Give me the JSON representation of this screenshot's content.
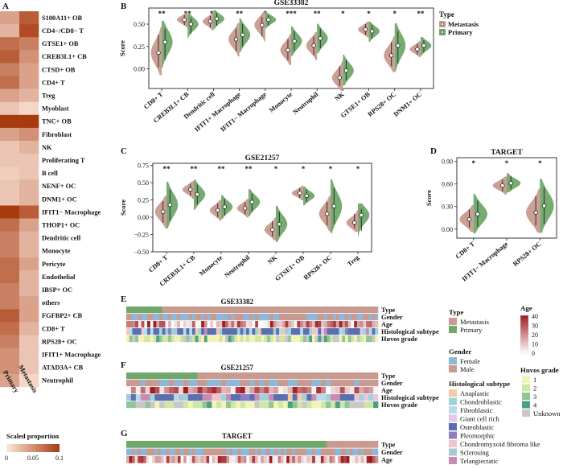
{
  "colors": {
    "metastasis": "#c99a8f",
    "primary": "#6fa86a",
    "heat_low": "#fbe8dc",
    "heat_high": "#a83a10",
    "female": "#8fb8d8",
    "male": "#c99a8f",
    "age_low": "#ffffff",
    "age_high": "#9e1b20",
    "huvos": [
      "#f3f3b4",
      "#cfe6a4",
      "#8fc59a",
      "#4e9e86",
      "#c8c8c8"
    ],
    "histo": [
      "#f3c9a8",
      "#9fd3d8",
      "#b8dbe6",
      "#e6c7e3",
      "#5a6fb0",
      "#8e7cc3",
      "#f2c4cf",
      "#a7c7d6",
      "#c98bb0"
    ]
  },
  "panel_labels": {
    "A": "A",
    "B": "B",
    "C": "C",
    "D": "D",
    "E": "E",
    "F": "F",
    "G": "G"
  },
  "chart_data": [
    {
      "panel": "A",
      "type": "heatmap",
      "rows": [
        "S100A11+ OB",
        "CD4−/CD8− T",
        "GTSE1+ OB",
        "CREB3L1+ CB",
        "CTSD+ OB",
        "CD4+ T",
        "Treg",
        "Myoblast",
        "TNC+ OB",
        "Fibroblast",
        "NK",
        "Proliferating T",
        "B cell",
        "NENF+ OC",
        "DNM1+ OC",
        "IFIT1− Macrophage",
        "THOP1+ OC",
        "Dendritic cell",
        "Monocyte",
        "Pericyte",
        "Endothelial",
        "IBSP+ OC",
        "others",
        "FGFBP2+ CB",
        "CD8+ T",
        "RPS28+ OC",
        "IFIT1+ Macrophage",
        "ATAD3A+ CB",
        "Neutrophil"
      ],
      "columns": [
        "Primary",
        "Metastasis"
      ],
      "values": [
        [
          0.04,
          0.08
        ],
        [
          0.03,
          0.09
        ],
        [
          0.07,
          0.06
        ],
        [
          0.08,
          0.05
        ],
        [
          0.06,
          0.04
        ],
        [
          0.07,
          0.04
        ],
        [
          0.04,
          0.03
        ],
        [
          0.02,
          0.01
        ],
        [
          0.1,
          0.1
        ],
        [
          0.04,
          0.05
        ],
        [
          0.02,
          0.03
        ],
        [
          0.02,
          0.02
        ],
        [
          0.015,
          0.02
        ],
        [
          0.02,
          0.03
        ],
        [
          0.02,
          0.03
        ],
        [
          0.1,
          0.08
        ],
        [
          0.07,
          0.04
        ],
        [
          0.06,
          0.03
        ],
        [
          0.06,
          0.03
        ],
        [
          0.07,
          0.04
        ],
        [
          0.07,
          0.03
        ],
        [
          0.06,
          0.03
        ],
        [
          0.06,
          0.04
        ],
        [
          0.08,
          0.04
        ],
        [
          0.07,
          0.03
        ],
        [
          0.06,
          0.02
        ],
        [
          0.05,
          0.02
        ],
        [
          0.05,
          0.02
        ],
        [
          0.04,
          0.01
        ]
      ],
      "legend_title": "Scaled proportion",
      "legend_ticks": [
        "0",
        "0.05",
        "0.1"
      ],
      "range": [
        0,
        0.1
      ]
    },
    {
      "panel": "B",
      "type": "violin",
      "title": "GSE33382",
      "ylabel": "Score",
      "ylim": [
        -0.22,
        0.68
      ],
      "yticks": [
        0.0,
        0.25,
        0.5
      ],
      "ytick_labels": [
        "0.00",
        "0.25",
        "0.50"
      ],
      "categories": [
        "CD8+ T",
        "CREB3L1+ CB",
        "Dendritic cell",
        "IFIT1+ Macrophage",
        "IFIT1− Macrophage",
        "Monocyte",
        "Neutrophil",
        "NK",
        "GTSE1+ OB",
        "RPS28+ OC",
        "DNM1+ OC"
      ],
      "significance": [
        "**",
        "**",
        "**",
        "**",
        "*",
        "***",
        "**",
        "*",
        "*",
        "*",
        "**"
      ],
      "series": [
        {
          "name": "Metastasis",
          "median": [
            0.18,
            0.55,
            0.53,
            0.33,
            0.49,
            0.21,
            0.26,
            -0.1,
            0.44,
            0.15,
            0.22
          ],
          "min": [
            0.02,
            0.49,
            0.46,
            0.2,
            0.36,
            0.1,
            0.15,
            -0.19,
            0.38,
            0.03,
            0.16
          ],
          "max": [
            0.38,
            0.6,
            0.59,
            0.45,
            0.58,
            0.33,
            0.36,
            0.03,
            0.5,
            0.3,
            0.28
          ]
        },
        {
          "name": "Primary",
          "median": [
            0.3,
            0.5,
            0.56,
            0.38,
            0.55,
            0.31,
            0.34,
            -0.02,
            0.42,
            0.26,
            0.26
          ],
          "min": [
            0.1,
            0.39,
            0.48,
            0.25,
            0.48,
            0.2,
            0.23,
            -0.13,
            0.34,
            0.06,
            0.18
          ],
          "max": [
            0.45,
            0.57,
            0.62,
            0.5,
            0.6,
            0.42,
            0.45,
            0.1,
            0.49,
            0.42,
            0.32
          ]
        }
      ],
      "legend": {
        "title": "Type",
        "entries": [
          "Metastasis",
          "Primary"
        ]
      }
    },
    {
      "panel": "C",
      "type": "violin",
      "title": "GSE21257",
      "ylabel": "Score",
      "ylim": [
        -0.5,
        0.78
      ],
      "yticks": [
        -0.5,
        -0.25,
        0.0,
        0.25,
        0.5,
        0.75
      ],
      "ytick_labels": [
        "−0.50",
        "−0.25",
        "0.00",
        "0.25",
        "0.50",
        "0.75"
      ],
      "categories": [
        "CD8+ T",
        "CREB3L1+ CB",
        "Monocyte",
        "Neutrophil",
        "NK",
        "GTSE1+ OB",
        "RPS28+ OC",
        "Treg"
      ],
      "significance": [
        "**",
        "**",
        "**",
        "**",
        "*",
        "*",
        "*",
        "*"
      ],
      "series": [
        {
          "name": "Metastasis",
          "median": [
            0.08,
            0.4,
            0.1,
            0.13,
            -0.18,
            0.35,
            0.05,
            -0.08
          ],
          "min": [
            -0.08,
            0.31,
            0.0,
            0.04,
            -0.28,
            0.28,
            -0.12,
            -0.16
          ],
          "max": [
            0.23,
            0.48,
            0.2,
            0.22,
            -0.06,
            0.42,
            0.22,
            0.05
          ]
        },
        {
          "name": "Primary",
          "median": [
            0.18,
            0.33,
            0.15,
            0.22,
            -0.1,
            0.31,
            0.16,
            0.03
          ],
          "min": [
            -0.05,
            0.18,
            0.03,
            0.08,
            -0.27,
            0.22,
            -0.1,
            -0.2
          ],
          "max": [
            0.4,
            0.47,
            0.26,
            0.34,
            0.08,
            0.4,
            0.42,
            0.12
          ]
        }
      ]
    },
    {
      "panel": "D",
      "type": "violin",
      "title": "TARGET",
      "ylabel": "Score",
      "ylim": [
        -0.12,
        0.95
      ],
      "yticks": [
        0.0,
        0.3,
        0.6,
        0.9
      ],
      "ytick_labels": [
        "0.00",
        "0.30",
        "0.60",
        "0.90"
      ],
      "categories": [
        "CD8+ T",
        "IFIT1− Macrophage",
        "RPS28+ OC"
      ],
      "significance": [
        "*",
        "*",
        "*"
      ],
      "series": [
        {
          "name": "Metastasis",
          "median": [
            0.13,
            0.58,
            0.22
          ],
          "min": [
            0.02,
            0.5,
            0.05
          ],
          "max": [
            0.26,
            0.66,
            0.44
          ]
        },
        {
          "name": "Primary",
          "median": [
            0.2,
            0.61,
            0.31
          ],
          "min": [
            0.03,
            0.53,
            0.07
          ],
          "max": [
            0.38,
            0.7,
            0.55
          ]
        }
      ]
    },
    {
      "panel": "E",
      "type": "annotation_heatmap",
      "title": "GSE33382",
      "tracks": [
        "Type",
        "Gender",
        "Age",
        "Histological subtype",
        "Huvos grade"
      ],
      "n_samples": 84,
      "primary_fraction": 0.14
    },
    {
      "panel": "F",
      "type": "annotation_heatmap",
      "title": "GSE21257",
      "tracks": [
        "Type",
        "Gender",
        "Age",
        "Histological subtype",
        "Huvos grade"
      ],
      "n_samples": 53,
      "primary_fraction": 0.28
    },
    {
      "panel": "G",
      "type": "annotation_heatmap",
      "title": "TARGET",
      "tracks": [
        "Type",
        "Gender",
        "Age"
      ],
      "n_samples": 88,
      "primary_fraction": 0.79
    }
  ],
  "legends": {
    "type": {
      "title": "Type",
      "entries": [
        "Metastasis",
        "Primary"
      ]
    },
    "gender": {
      "title": "Gender",
      "entries": [
        "Female",
        "Male"
      ]
    },
    "age": {
      "title": "Age",
      "ticks": [
        "40",
        "30",
        "20",
        "10",
        "0"
      ],
      "range": [
        0,
        40
      ]
    },
    "huvos": {
      "title": "Huvos grade",
      "entries": [
        "1",
        "2",
        "3",
        "4",
        "Unknown"
      ]
    },
    "histo": {
      "title": "Histological subtype",
      "entries": [
        "Anaplastic",
        "Chondroblastic",
        "Fibroblastic",
        "Giant cell rich",
        "Osteoblastic",
        "Pleomorphic",
        "Chondromyxoid fibroma like",
        "Sclerosing",
        "Telangiectatic"
      ]
    }
  }
}
